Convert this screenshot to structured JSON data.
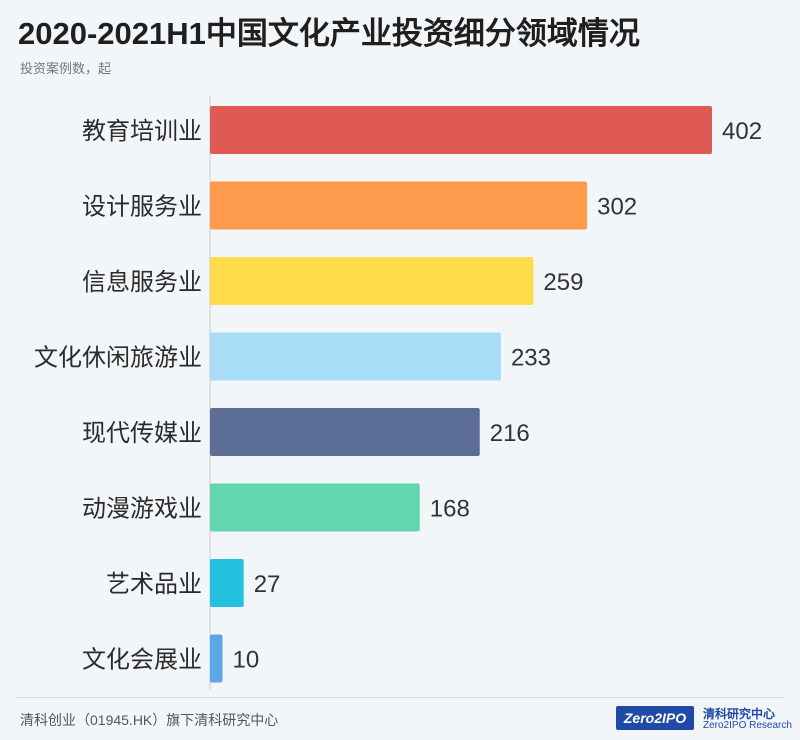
{
  "header": {
    "title": "2020-2021H1中国文化产业投资细分领域情况",
    "subtitle": "投资案例数，起"
  },
  "chart_data": {
    "type": "bar",
    "orientation": "horizontal",
    "categories": [
      "教育培训业",
      "设计服务业",
      "信息服务业",
      "文化休闲旅游业",
      "现代传媒业",
      "动漫游戏业",
      "艺术品业",
      "文化会展业"
    ],
    "values": [
      402,
      302,
      259,
      233,
      216,
      168,
      27,
      10
    ],
    "colors": [
      "#e05a55",
      "#fd9a4c",
      "#fedc4b",
      "#a9dcf6",
      "#5c6e96",
      "#62d7ad",
      "#24c2de",
      "#5ca6e8"
    ],
    "title": "2020-2021H1中国文化产业投资细分领域情况",
    "xlabel": "",
    "ylabel": "投资案例数，起",
    "xlim": [
      0,
      402
    ]
  },
  "footer": {
    "source": "清科创业（01945.HK）旗下清科研究中心",
    "logo_box": "Zero2IPO",
    "logo_cn": "清科研究中心",
    "logo_en": "Zero2IPO Research"
  }
}
